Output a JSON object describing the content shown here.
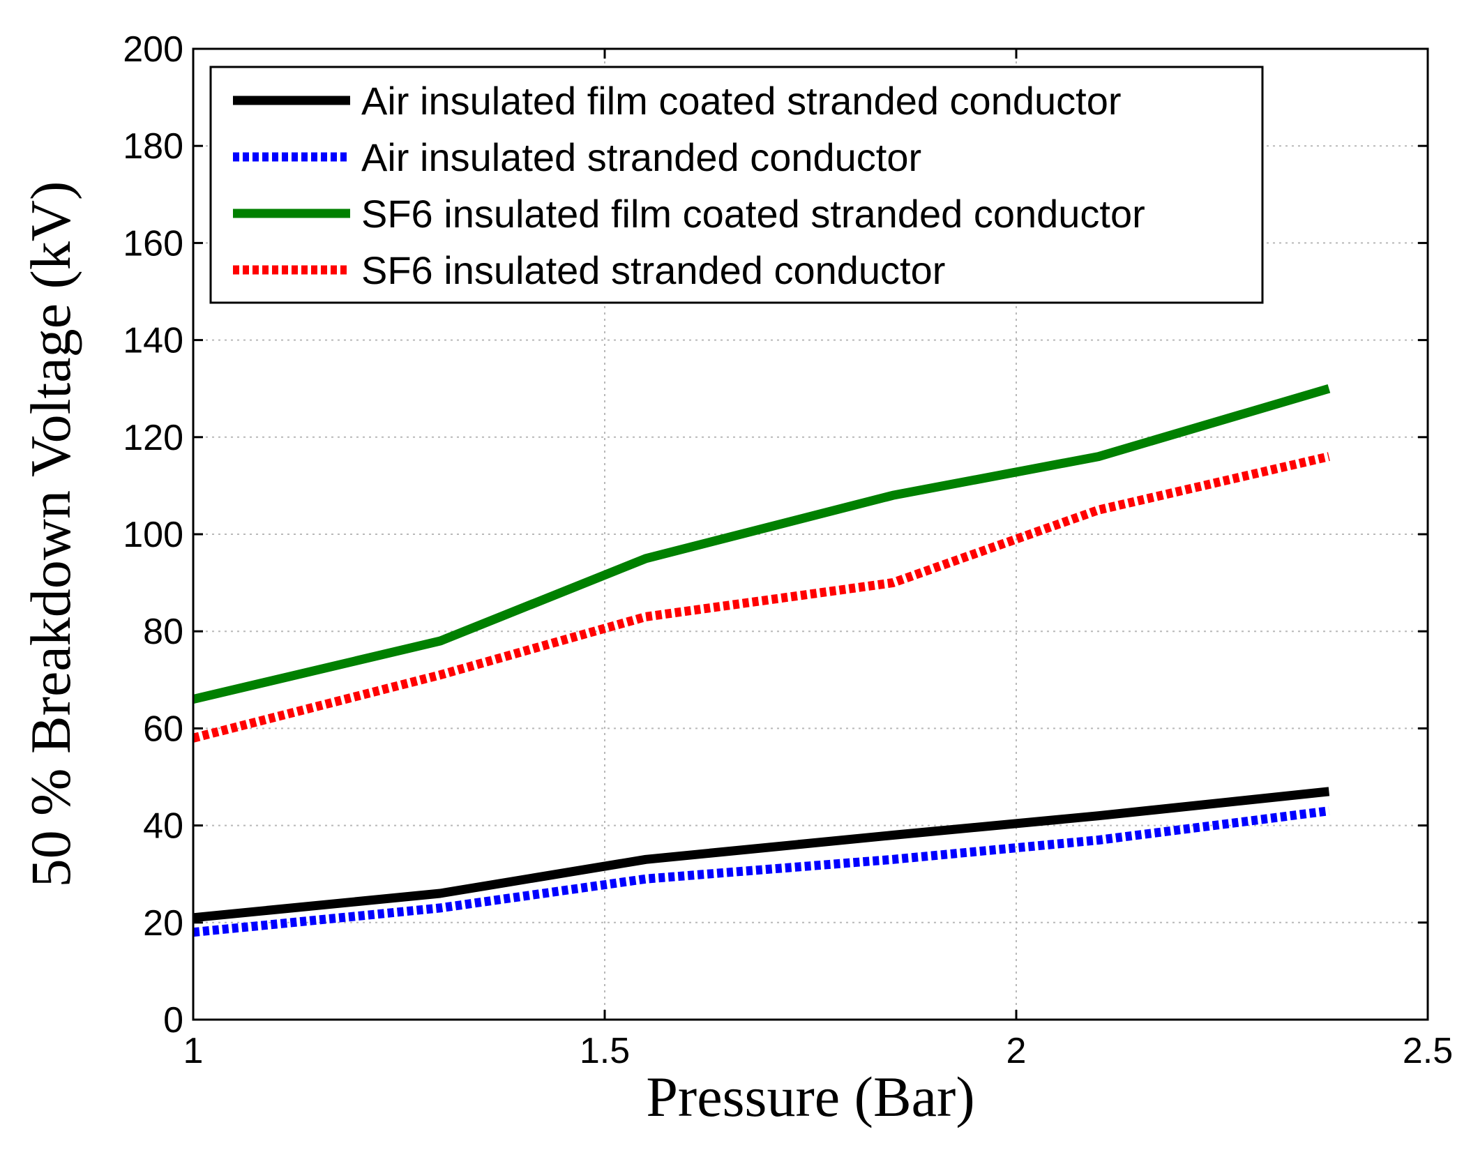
{
  "chart_data": {
    "type": "line",
    "title": "",
    "xlabel": "Pressure (Bar)",
    "ylabel": "50 % Breakdown Voltage (kV)",
    "xlim": [
      1,
      2.5
    ],
    "ylim": [
      0,
      200
    ],
    "xticks": [
      1,
      1.5,
      2,
      2.5
    ],
    "xtick_labels": [
      "1",
      "1.5",
      "2",
      "2.5"
    ],
    "yticks": [
      0,
      20,
      40,
      60,
      80,
      100,
      120,
      140,
      160,
      180,
      200
    ],
    "ytick_labels": [
      "0",
      "20",
      "40",
      "60",
      "80",
      "100",
      "120",
      "140",
      "160",
      "180",
      "200"
    ],
    "grid": true,
    "legend_position": "top-left",
    "series": [
      {
        "name": "Air insulated film coated stranded conductor",
        "color": "#000000",
        "style": "solid",
        "x": [
          1.0,
          1.3,
          1.55,
          1.85,
          2.1,
          2.38
        ],
        "y": [
          21,
          26,
          33,
          38,
          42,
          47
        ]
      },
      {
        "name": "Air insulated stranded conductor",
        "color": "#0000ff",
        "style": "dotted",
        "x": [
          1.0,
          1.3,
          1.55,
          1.85,
          2.1,
          2.38
        ],
        "y": [
          18,
          23,
          29,
          33,
          37,
          43
        ]
      },
      {
        "name": "SF6 insulated film coated stranded conductor",
        "color": "#008000",
        "style": "solid",
        "x": [
          1.0,
          1.3,
          1.55,
          1.85,
          2.1,
          2.38
        ],
        "y": [
          66,
          78,
          95,
          108,
          116,
          130
        ]
      },
      {
        "name": "SF6 insulated stranded conductor",
        "color": "#ff0000",
        "style": "dotted",
        "x": [
          1.0,
          1.3,
          1.55,
          1.85,
          2.1,
          2.38
        ],
        "y": [
          58,
          71,
          83,
          90,
          105,
          116
        ]
      }
    ]
  }
}
